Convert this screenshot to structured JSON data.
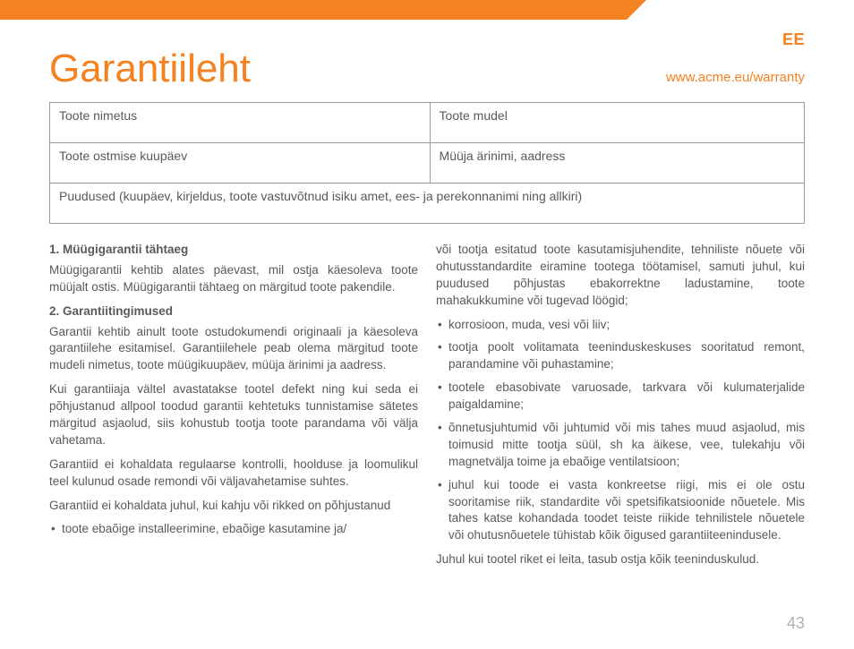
{
  "colors": {
    "accent": "#f58220",
    "text": "#58595b",
    "border": "#9b9b9b",
    "pagenum": "#b0b0b0",
    "background": "#ffffff"
  },
  "lang_code": "EE",
  "title": "Garantiileht",
  "url": "www.acme.eu/warranty",
  "table": {
    "row1_left": "Toote nimetus",
    "row1_right": "Toote mudel",
    "row2_left": "Toote ostmise kuupäev",
    "row2_right": "Müüja ärinimi, aadress",
    "row3": "Puudused (kuupäev, kirjeldus, toote vastuvõtnud isiku amet, ees- ja perekonnanimi ning allkiri)"
  },
  "section1": {
    "heading": "1. Müügigarantii tähtaeg",
    "p1": "Müügigarantii kehtib alates päevast, mil ostja käesoleva toote müüjalt ostis. Müügigarantii tähtaeg on märgitud toote pakendile."
  },
  "section2": {
    "heading": "2. Garantiitingimused",
    "p1": "Garantii kehtib ainult toote ostudokumendi originaali ja käesoleva garantiilehe esitamisel. Garantiilehele peab olema märgitud toote mudeli nimetus, toote müügikuupäev, müüja ärinimi ja aadress.",
    "p2": "Kui garantiiaja vältel avastatakse tootel defekt ning kui seda ei põhjustanud allpool toodud garantii kehtetuks tunnistamise sätetes märgitud asjaolud, siis kohustub tootja toote parandama või välja vahetama.",
    "p3": "Garantiid ei kohaldata regulaarse kontrolli, hoolduse ja loomulikul teel kulunud osade remondi või väljavahetamise suhtes.",
    "p4": "Garantiid ei kohaldata juhul, kui kahju või rikked on põhjustanud",
    "left_bullets": {
      "b1": "toote ebaõige installeerimine, ebaõige kasutamine ja/"
    },
    "p5_cont": "või tootja esitatud toote kasutamisjuhendite, tehniliste nõuete või ohutusstandardite eiramine tootega töötamisel, samuti juhul, kui puudused põhjustas ebakorrektne ladustamine, toote mahakukkumine või tugevad löögid;",
    "right_bullets": {
      "b1": "korrosioon, muda, vesi või liiv;",
      "b2": "tootja poolt volitamata teeninduskeskuses sooritatud remont, parandamine või puhastamine;",
      "b3": "tootele ebasobivate varuosade, tarkvara või kulumaterjalide paigaldamine;",
      "b4": "õnnetusjuhtumid või juhtumid või mis tahes muud asjaolud, mis toimusid mitte tootja süül, sh ka äikese, vee, tulekahju või magnetvälja toime ja ebaõige ventilatsioon;",
      "b5": "juhul kui toode ei vasta konkreetse riigi, mis ei ole ostu sooritamise riik, standardite või spetsifikatsioonide nõuetele. Mis tahes katse kohandada toodet teiste riikide tehnilistele nõuetele või ohutusnõuetele tühistab kõik õigused garantiiteenindusele."
    },
    "p6": "Juhul kui tootel riket ei leita, tasub ostja kõik teeninduskulud."
  },
  "page_number": "43"
}
